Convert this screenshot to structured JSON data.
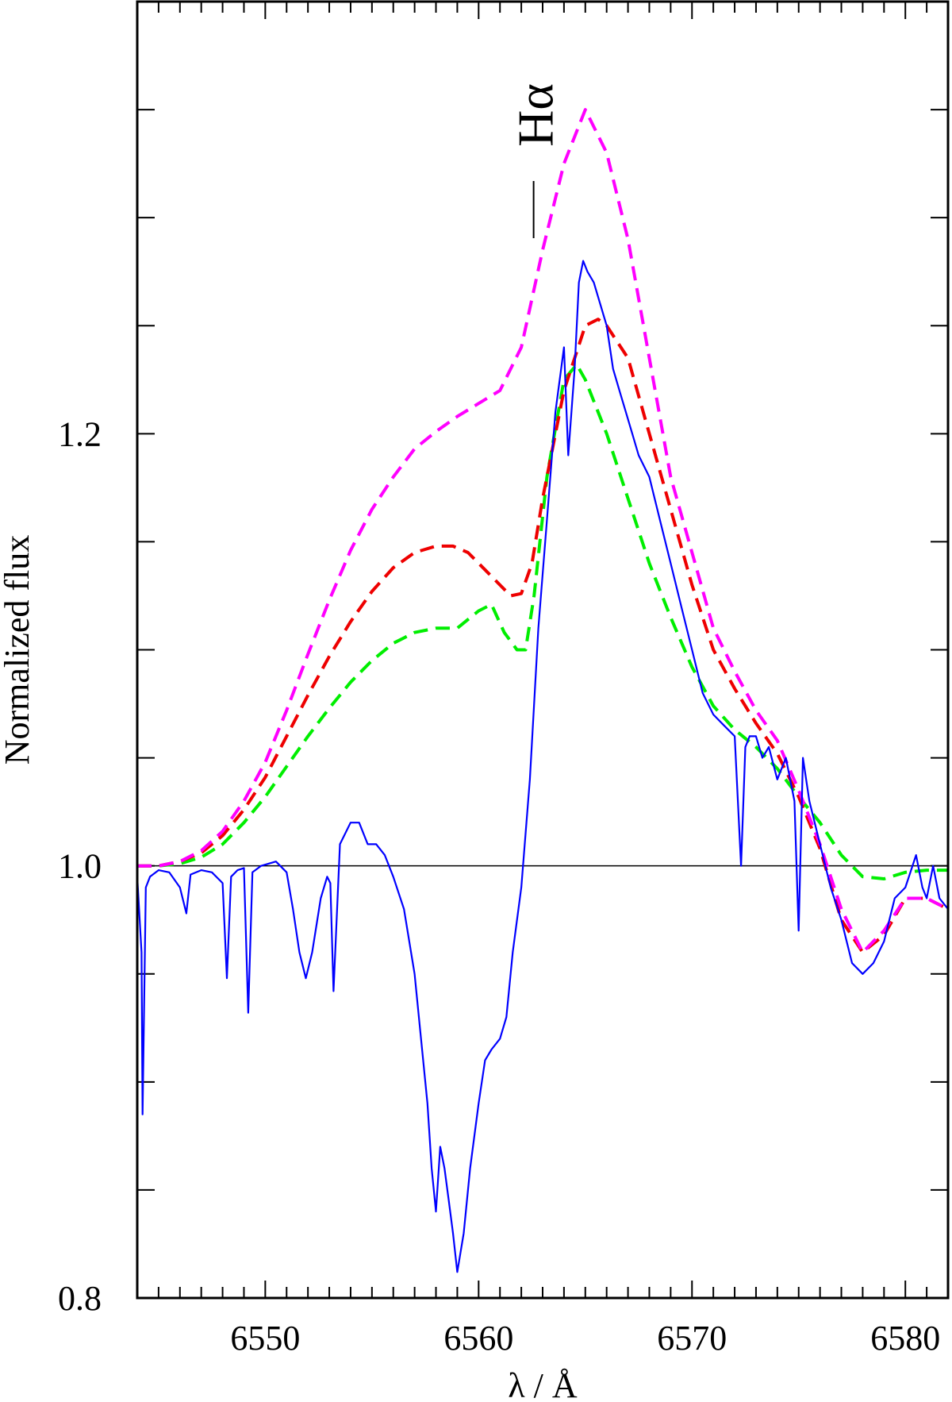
{
  "chart_data": {
    "type": "line",
    "xlabel": "λ / Å",
    "ylabel": "Normalized flux",
    "xlim": [
      6544.0,
      6582.0
    ],
    "ylim": [
      0.8,
      1.4
    ],
    "x_ticks": [
      6550,
      6560,
      6570,
      6580
    ],
    "x_tick_labels": [
      "6550",
      "6560",
      "6570",
      "6580"
    ],
    "y_ticks": [
      0.8,
      1.0,
      1.2
    ],
    "y_tick_labels": [
      "0.8",
      "1.0",
      "1.2"
    ],
    "continuum": 1.0,
    "line_marker": {
      "label": "Hα",
      "x": 6562.8
    },
    "grid": false,
    "legend": "none",
    "series": [
      {
        "key": "observed",
        "color": "#0000ff",
        "style": "solid",
        "x": [
          6544.0,
          6544.2,
          6544.25,
          6544.4,
          6544.6,
          6545.0,
          6545.5,
          6546.0,
          6546.3,
          6546.5,
          6547.0,
          6547.5,
          6548.0,
          6548.2,
          6548.4,
          6548.7,
          6549.0,
          6549.2,
          6549.4,
          6549.8,
          6550.5,
          6551.0,
          6551.3,
          6551.6,
          6551.9,
          6552.2,
          6552.6,
          6552.9,
          6553.05,
          6553.2,
          6553.5,
          6554.0,
          6554.4,
          6554.8,
          6555.2,
          6555.6,
          6556.0,
          6556.5,
          6557.0,
          6557.3,
          6557.6,
          6557.8,
          6558.0,
          6558.2,
          6558.4,
          6558.6,
          6558.8,
          6559.0,
          6559.3,
          6559.6,
          6560.0,
          6560.3,
          6560.6,
          6561.0,
          6561.3,
          6561.6,
          6562.0,
          6562.4,
          6562.8,
          6563.2,
          6563.6,
          6564.0,
          6564.2,
          6564.5,
          6564.7,
          6564.9,
          6565.1,
          6565.4,
          6565.7,
          6566.0,
          6566.3,
          6566.6,
          6566.9,
          6567.2,
          6567.5,
          6568.0,
          6568.5,
          6569.0,
          6569.5,
          6570.0,
          6570.5,
          6571.0,
          6571.5,
          6572.0,
          6572.3,
          6572.5,
          6572.7,
          6573.0,
          6573.3,
          6573.6,
          6574.0,
          6574.4,
          6574.8,
          6575.0,
          6575.2,
          6575.5,
          6576.0,
          6576.5,
          6577.0,
          6577.5,
          6578.0,
          6578.5,
          6579.0,
          6579.5,
          6580.0,
          6580.5,
          6580.8,
          6581.0,
          6581.3,
          6581.6,
          6582.0
        ],
        "y": [
          0.995,
          0.96,
          0.885,
          0.99,
          0.995,
          0.998,
          0.997,
          0.99,
          0.978,
          0.996,
          0.998,
          0.997,
          0.992,
          0.948,
          0.995,
          0.998,
          0.999,
          0.932,
          0.997,
          1.0,
          1.002,
          0.997,
          0.98,
          0.96,
          0.948,
          0.96,
          0.985,
          0.995,
          0.992,
          0.942,
          1.01,
          1.02,
          1.02,
          1.01,
          1.01,
          1.005,
          0.995,
          0.98,
          0.95,
          0.92,
          0.89,
          0.86,
          0.84,
          0.87,
          0.86,
          0.845,
          0.83,
          0.812,
          0.83,
          0.86,
          0.89,
          0.91,
          0.915,
          0.92,
          0.93,
          0.96,
          0.99,
          1.04,
          1.11,
          1.16,
          1.21,
          1.24,
          1.19,
          1.23,
          1.27,
          1.28,
          1.275,
          1.27,
          1.26,
          1.25,
          1.23,
          1.22,
          1.21,
          1.2,
          1.19,
          1.18,
          1.16,
          1.14,
          1.12,
          1.1,
          1.08,
          1.07,
          1.065,
          1.06,
          1.0,
          1.055,
          1.06,
          1.06,
          1.05,
          1.055,
          1.04,
          1.05,
          1.03,
          0.97,
          1.05,
          1.03,
          1.01,
          0.99,
          0.975,
          0.955,
          0.95,
          0.955,
          0.965,
          0.985,
          0.99,
          1.005,
          0.99,
          0.985,
          1.0,
          0.985,
          0.98
        ]
      },
      {
        "key": "model-magenta",
        "color": "#ff00ff",
        "style": "dashed",
        "x": [
          6544.0,
          6545.0,
          6546.0,
          6547.0,
          6548.0,
          6549.0,
          6550.0,
          6551.0,
          6552.0,
          6553.0,
          6554.0,
          6555.0,
          6556.0,
          6557.0,
          6558.0,
          6559.0,
          6560.0,
          6561.0,
          6562.0,
          6563.0,
          6564.0,
          6565.0,
          6566.0,
          6567.0,
          6568.0,
          6569.0,
          6570.0,
          6571.0,
          6572.0,
          6573.0,
          6574.0,
          6575.0,
          6576.0,
          6577.0,
          6578.0,
          6579.0,
          6580.0,
          6581.0,
          6582.0
        ],
        "y": [
          1.0,
          1.0,
          1.002,
          1.007,
          1.016,
          1.03,
          1.048,
          1.072,
          1.098,
          1.123,
          1.146,
          1.165,
          1.18,
          1.193,
          1.201,
          1.208,
          1.214,
          1.22,
          1.24,
          1.285,
          1.325,
          1.35,
          1.33,
          1.29,
          1.235,
          1.18,
          1.145,
          1.11,
          1.09,
          1.072,
          1.058,
          1.035,
          1.01,
          0.98,
          0.96,
          0.97,
          0.985,
          0.985,
          0.98
        ]
      },
      {
        "key": "model-red",
        "color": "#ee0000",
        "style": "dashed",
        "x": [
          6544.0,
          6545.0,
          6546.0,
          6547.0,
          6548.0,
          6549.0,
          6550.0,
          6551.0,
          6552.0,
          6553.0,
          6554.0,
          6555.0,
          6556.0,
          6557.0,
          6558.0,
          6558.8,
          6559.5,
          6560.5,
          6561.5,
          6562.0,
          6562.5,
          6563.0,
          6564.0,
          6565.0,
          6565.6,
          6566.0,
          6567.0,
          6568.0,
          6569.0,
          6570.0,
          6571.0,
          6572.0,
          6573.0,
          6574.0,
          6575.0,
          6576.0,
          6577.0,
          6578.0,
          6579.0,
          6580.0,
          6581.0,
          6582.0
        ],
        "y": [
          1.0,
          1.0,
          1.002,
          1.006,
          1.014,
          1.026,
          1.041,
          1.06,
          1.079,
          1.097,
          1.113,
          1.127,
          1.138,
          1.145,
          1.148,
          1.148,
          1.145,
          1.135,
          1.125,
          1.126,
          1.14,
          1.17,
          1.22,
          1.25,
          1.253,
          1.25,
          1.235,
          1.2,
          1.165,
          1.13,
          1.1,
          1.082,
          1.066,
          1.052,
          1.032,
          1.008,
          0.975,
          0.96,
          0.968,
          0.985,
          0.985,
          0.98
        ]
      },
      {
        "key": "model-green",
        "color": "#00ee00",
        "style": "dashed",
        "x": [
          6544.0,
          6545.0,
          6546.0,
          6547.0,
          6548.0,
          6549.0,
          6550.0,
          6551.0,
          6552.0,
          6553.0,
          6554.0,
          6555.0,
          6556.0,
          6557.0,
          6558.0,
          6559.0,
          6560.0,
          6560.6,
          6561.2,
          6561.8,
          6562.2,
          6562.6,
          6563.2,
          6564.0,
          6564.6,
          6565.0,
          6566.0,
          6567.0,
          6568.0,
          6569.0,
          6570.0,
          6571.0,
          6572.0,
          6573.0,
          6574.0,
          6575.0,
          6576.0,
          6577.0,
          6578.0,
          6579.0,
          6580.0,
          6581.0,
          6582.0
        ],
        "y": [
          1.0,
          1.0,
          1.001,
          1.004,
          1.01,
          1.02,
          1.032,
          1.046,
          1.06,
          1.073,
          1.085,
          1.095,
          1.103,
          1.108,
          1.11,
          1.11,
          1.118,
          1.121,
          1.108,
          1.1,
          1.1,
          1.125,
          1.18,
          1.225,
          1.232,
          1.225,
          1.2,
          1.17,
          1.14,
          1.115,
          1.092,
          1.074,
          1.063,
          1.055,
          1.045,
          1.032,
          1.02,
          1.005,
          0.995,
          0.994,
          0.997,
          0.998,
          0.998
        ]
      }
    ]
  }
}
